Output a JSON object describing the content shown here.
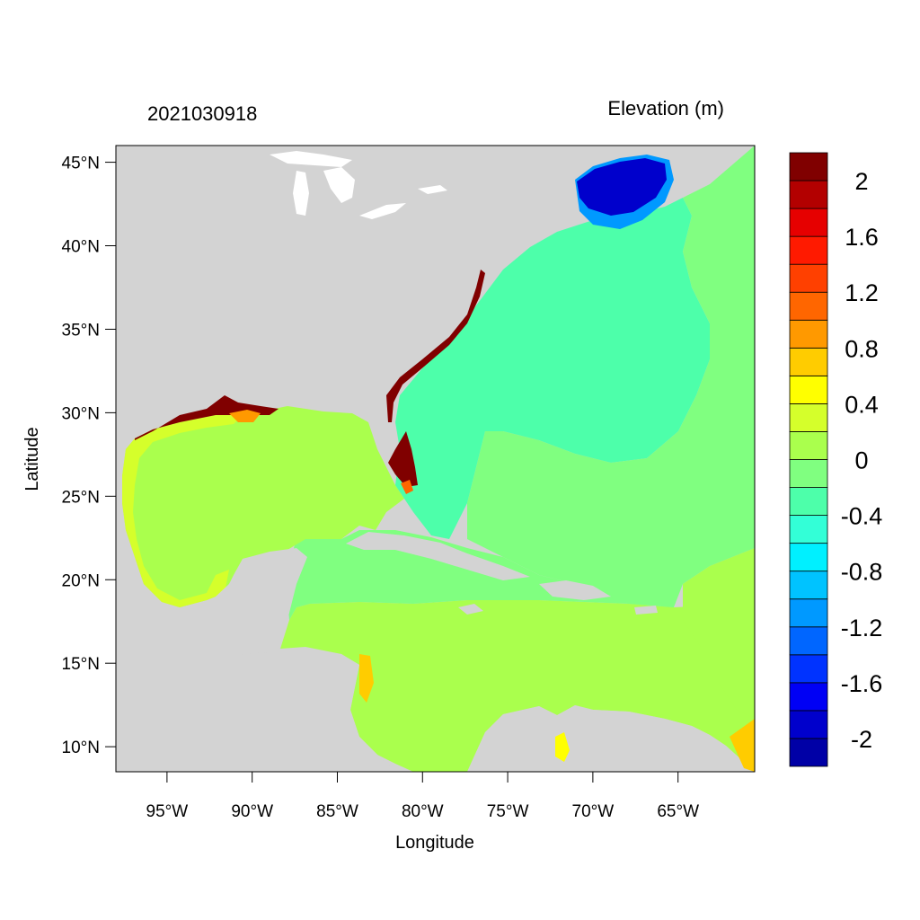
{
  "map": {
    "timestamp": "2021030918",
    "variable_label": "Elevation (m)",
    "x_axis_title": "Longitude",
    "y_axis_title": "Latitude",
    "lon_range": [
      -98,
      -60.5
    ],
    "lat_range": [
      8.5,
      46
    ],
    "lon_ticks": [
      {
        "value": -95,
        "label": "95°W"
      },
      {
        "value": -90,
        "label": "90°W"
      },
      {
        "value": -85,
        "label": "85°W"
      },
      {
        "value": -80,
        "label": "80°W"
      },
      {
        "value": -75,
        "label": "75°W"
      },
      {
        "value": -70,
        "label": "70°W"
      },
      {
        "value": -65,
        "label": "65°W"
      }
    ],
    "lat_ticks": [
      {
        "value": 45,
        "label": "45°N"
      },
      {
        "value": 40,
        "label": "40°N"
      },
      {
        "value": 35,
        "label": "35°N"
      },
      {
        "value": 30,
        "label": "30°N"
      },
      {
        "value": 25,
        "label": "25°N"
      },
      {
        "value": 20,
        "label": "20°N"
      },
      {
        "value": 15,
        "label": "15°N"
      },
      {
        "value": 10,
        "label": "10°N"
      }
    ],
    "colors": {
      "land": "#d3d3d3",
      "lakes": "#ffffff",
      "frame": "#000000"
    }
  },
  "colorbar": {
    "colors": [
      "#0000a6",
      "#0000cc",
      "#0000f5",
      "#0033ff",
      "#0066ff",
      "#0099ff",
      "#00c3ff",
      "#00f0ff",
      "#33ffd7",
      "#4dffaa",
      "#80ff80",
      "#aaff4d",
      "#d5ff2b",
      "#ffff00",
      "#ffcc00",
      "#ff9900",
      "#ff6600",
      "#ff4000",
      "#ff1a00",
      "#e60000",
      "#b30000",
      "#800000"
    ],
    "labels": [
      {
        "value": 2,
        "label": "2"
      },
      {
        "value": 1.6,
        "label": "1.6"
      },
      {
        "value": 1.2,
        "label": "1.2"
      },
      {
        "value": 0.8,
        "label": "0.8"
      },
      {
        "value": 0.4,
        "label": "0.4"
      },
      {
        "value": 0,
        "label": "0"
      },
      {
        "value": -0.4,
        "label": "-0.4"
      },
      {
        "value": -0.8,
        "label": "-0.8"
      },
      {
        "value": -1.2,
        "label": "-1.2"
      },
      {
        "value": -1.6,
        "label": "-1.6"
      },
      {
        "value": -2,
        "label": "-2"
      }
    ]
  }
}
